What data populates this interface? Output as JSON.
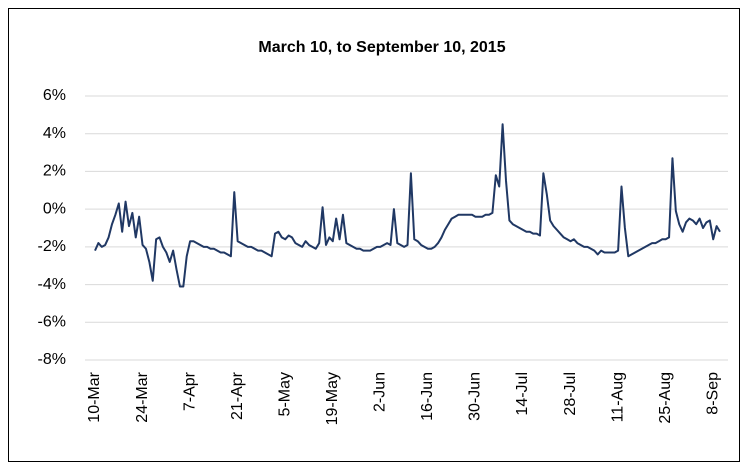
{
  "chart_data": {
    "type": "line",
    "title": "March 10, to September 10, 2015",
    "categories": [
      "10-Mar",
      null,
      null,
      null,
      null,
      null,
      null,
      null,
      null,
      null,
      null,
      null,
      null,
      null,
      "24-Mar",
      null,
      null,
      null,
      null,
      null,
      null,
      null,
      null,
      null,
      null,
      null,
      null,
      null,
      "7-Apr",
      null,
      null,
      null,
      null,
      null,
      null,
      null,
      null,
      null,
      null,
      null,
      null,
      null,
      "21-Apr",
      null,
      null,
      null,
      null,
      null,
      null,
      null,
      null,
      null,
      null,
      null,
      null,
      null,
      "5-May",
      null,
      null,
      null,
      null,
      null,
      null,
      null,
      null,
      null,
      null,
      null,
      null,
      null,
      "19-May",
      null,
      null,
      null,
      null,
      null,
      null,
      null,
      null,
      null,
      null,
      null,
      null,
      null,
      "2-Jun",
      null,
      null,
      null,
      null,
      null,
      null,
      null,
      null,
      null,
      null,
      null,
      null,
      null,
      "16-Jun",
      null,
      null,
      null,
      null,
      null,
      null,
      null,
      null,
      null,
      null,
      null,
      null,
      null,
      "30-Jun",
      null,
      null,
      null,
      null,
      null,
      null,
      null,
      null,
      null,
      null,
      null,
      null,
      null,
      "14-Jul",
      null,
      null,
      null,
      null,
      null,
      null,
      null,
      null,
      null,
      null,
      null,
      null,
      null,
      "28-Jul",
      null,
      null,
      null,
      null,
      null,
      null,
      null,
      null,
      null,
      null,
      null,
      null,
      null,
      "11-Aug",
      null,
      null,
      null,
      null,
      null,
      null,
      null,
      null,
      null,
      null,
      null,
      null,
      null,
      "25-Aug",
      null,
      null,
      null,
      null,
      null,
      null,
      null,
      null,
      null,
      null,
      null,
      null,
      null,
      "8-Sep",
      null,
      null
    ],
    "values": [
      -2.2,
      -1.8,
      -2.0,
      -1.9,
      -1.5,
      -0.8,
      -0.3,
      0.3,
      -1.2,
      0.4,
      -0.9,
      -0.2,
      -1.5,
      -0.4,
      -1.9,
      -2.1,
      -2.8,
      -3.8,
      -1.6,
      -1.5,
      -2.0,
      -2.3,
      -2.8,
      -2.2,
      -3.2,
      -4.1,
      -4.1,
      -2.5,
      -1.7,
      -1.7,
      -1.8,
      -1.9,
      -2.0,
      -2.0,
      -2.1,
      -2.1,
      -2.2,
      -2.3,
      -2.3,
      -2.4,
      -2.5,
      0.9,
      -1.7,
      -1.8,
      -1.9,
      -2.0,
      -2.0,
      -2.1,
      -2.2,
      -2.2,
      -2.3,
      -2.4,
      -2.5,
      -1.3,
      -1.2,
      -1.5,
      -1.6,
      -1.4,
      -1.5,
      -1.8,
      -1.9,
      -2.0,
      -1.7,
      -1.9,
      -2.0,
      -2.1,
      -1.8,
      0.1,
      -1.9,
      -1.5,
      -1.7,
      -0.5,
      -1.6,
      -0.3,
      -1.8,
      -1.9,
      -2.0,
      -2.1,
      -2.1,
      -2.2,
      -2.2,
      -2.2,
      -2.1,
      -2.0,
      -2.0,
      -1.9,
      -1.8,
      -1.9,
      0.0,
      -1.8,
      -1.9,
      -2.0,
      -1.9,
      1.9,
      -1.6,
      -1.7,
      -1.9,
      -2.0,
      -2.1,
      -2.1,
      -2.0,
      -1.8,
      -1.5,
      -1.1,
      -0.8,
      -0.5,
      -0.4,
      -0.3,
      -0.3,
      -0.3,
      -0.3,
      -0.3,
      -0.4,
      -0.4,
      -0.4,
      -0.3,
      -0.3,
      -0.2,
      1.8,
      1.2,
      4.5,
      1.5,
      -0.6,
      -0.8,
      -0.9,
      -1.0,
      -1.1,
      -1.2,
      -1.2,
      -1.3,
      -1.3,
      -1.4,
      1.9,
      0.8,
      -0.6,
      -0.9,
      -1.1,
      -1.3,
      -1.5,
      -1.6,
      -1.7,
      -1.6,
      -1.8,
      -1.9,
      -2.0,
      -2.0,
      -2.1,
      -2.2,
      -2.4,
      -2.2,
      -2.3,
      -2.3,
      -2.3,
      -2.3,
      -2.2,
      1.2,
      -1.0,
      -2.5,
      -2.4,
      -2.3,
      -2.2,
      -2.1,
      -2.0,
      -1.9,
      -1.8,
      -1.8,
      -1.7,
      -1.6,
      -1.6,
      -1.5,
      2.7,
      -0.1,
      -0.8,
      -1.2,
      -0.7,
      -0.5,
      -0.6,
      -0.8,
      -0.5,
      -1.0,
      -0.7,
      -0.6,
      -1.6,
      -0.9,
      -1.2
    ],
    "color": "#203864",
    "ylim": [
      -8,
      6
    ],
    "yticks": [
      {
        "value": -8,
        "label": "-8%"
      },
      {
        "value": -6,
        "label": "-6%"
      },
      {
        "value": -4,
        "label": "-4%"
      },
      {
        "value": -2,
        "label": "-2%"
      },
      {
        "value": 0,
        "label": "0%"
      },
      {
        "value": 2,
        "label": "2%"
      },
      {
        "value": 4,
        "label": "4%"
      },
      {
        "value": 6,
        "label": "6%"
      }
    ],
    "grid": true
  }
}
